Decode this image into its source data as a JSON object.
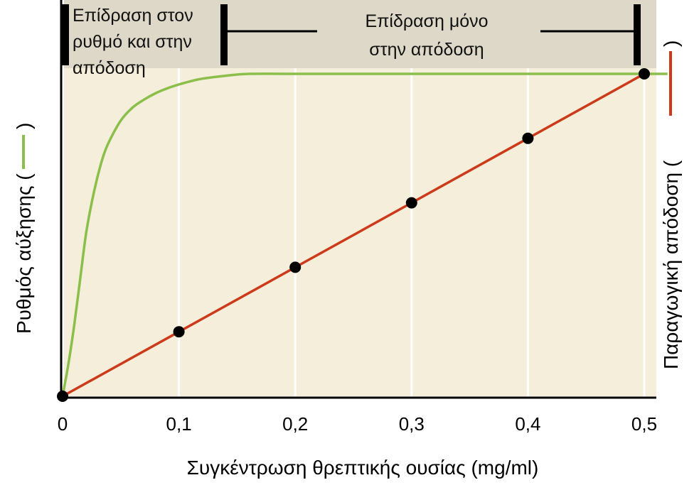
{
  "chart_data": {
    "type": "line",
    "xlabel": "Συγκέντρωση θρεπτικής ουσίας (mg/ml)",
    "ylabel_left": "Ρυθμός αύξησης (",
    "ylabel_right": "Παραγωγική απόδοση (",
    "ylabel_close": ")",
    "x_ticks": [
      "0",
      "0,1",
      "0,2",
      "0,3",
      "0,4",
      "0,5"
    ],
    "xlim": [
      0,
      0.5
    ],
    "annotations": {
      "left_box": [
        "Επίδραση στον",
        "ρυθμό και στην",
        "απόδοση"
      ],
      "right_box": [
        "Επίδραση μόνο",
        "στην απόδοση"
      ]
    },
    "series": [
      {
        "key": "growth_rate",
        "color": "#8bbf4a",
        "x": [
          0,
          0.005,
          0.01,
          0.015,
          0.02,
          0.025,
          0.03,
          0.035,
          0.04,
          0.05,
          0.06,
          0.07,
          0.08,
          0.09,
          0.1,
          0.11,
          0.12,
          0.14,
          0.16,
          0.2,
          0.3,
          0.4,
          0.5,
          0.52
        ],
        "y": [
          0,
          0.1,
          0.22,
          0.36,
          0.5,
          0.6,
          0.68,
          0.745,
          0.79,
          0.855,
          0.895,
          0.92,
          0.94,
          0.955,
          0.967,
          0.977,
          0.985,
          0.994,
          1.0,
          1.0,
          1.0,
          1.0,
          1.0,
          1.0
        ]
      },
      {
        "key": "yield",
        "color": "#cc3a1a",
        "x": [
          0,
          0.1,
          0.2,
          0.3,
          0.4,
          0.5
        ],
        "y": [
          0,
          0.2,
          0.4,
          0.6,
          0.8,
          1.0
        ],
        "markers": true
      }
    ]
  }
}
